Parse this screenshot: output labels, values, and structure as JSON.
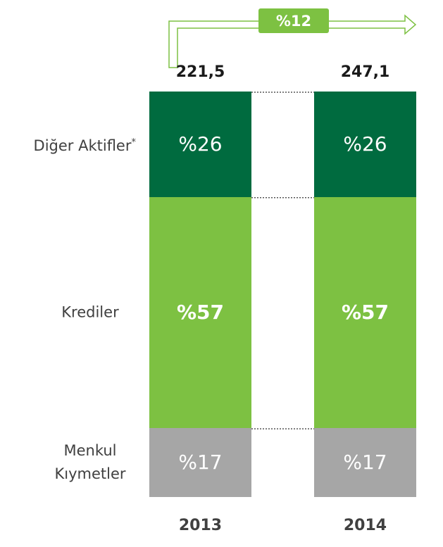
{
  "chart_data": {
    "type": "stacked-bar",
    "categories": [
      "2013",
      "2014"
    ],
    "series": [
      {
        "name": "Menkul Kıymetler",
        "color": "#a6a6a6",
        "values": [
          17,
          17
        ],
        "value_labels": [
          "%17",
          "%17"
        ]
      },
      {
        "name": "Krediler",
        "color": "#7dc142",
        "values": [
          57,
          57
        ],
        "value_labels": [
          "%57",
          "%57"
        ],
        "bold": true
      },
      {
        "name": "Diğer Aktifler",
        "color": "#006b3f",
        "values": [
          26,
          26
        ],
        "value_labels": [
          "%26",
          "%26"
        ],
        "footnote_mark": "*"
      }
    ],
    "totals": {
      "values": [
        221.5,
        247.1
      ],
      "value_labels": [
        "221,5",
        "247,1"
      ]
    },
    "growth": {
      "value": 12,
      "label": "%12",
      "color": "#7dc142"
    }
  }
}
